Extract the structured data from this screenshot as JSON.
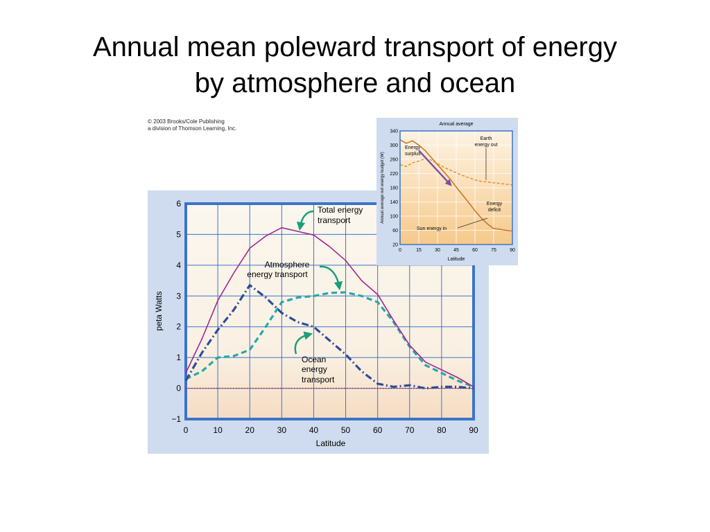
{
  "slide": {
    "title_line1": "Annual mean poleward transport of energy",
    "title_line2": "by atmosphere and ocean"
  },
  "copyright": {
    "line1": "© 2003 Brooks/Cole Publishing",
    "line2": "a division of Thomson Learning, Inc."
  },
  "colors": {
    "main_panel_bg": "#cfdcef",
    "plot_bg_top": "#fbf7ee",
    "plot_bg_bottom": "#f5dcc2",
    "grid": "#3b73c9",
    "total": "#a3258f",
    "atmosphere": "#26a8a8",
    "ocean": "#2b4d9a",
    "zero_line": "#c8102e",
    "annotation_arrow": "#17a07a",
    "inset_bg_top": "#fdf3e3",
    "inset_bg_bottom": "#f6c98a",
    "inset_sun": "#c9762a",
    "inset_earth": "#e08a2c",
    "inset_arrow": "#7a4fa3"
  },
  "chart_data": [
    {
      "type": "line",
      "title": "",
      "xlabel": "Latitude",
      "ylabel": "peta Watts",
      "xlim": [
        0,
        90
      ],
      "ylim": [
        -1,
        6
      ],
      "x_ticks": [
        "0",
        "10",
        "20",
        "30",
        "40",
        "50",
        "60",
        "70",
        "80",
        "90"
      ],
      "y_ticks": [
        "−1",
        "0",
        "1",
        "2",
        "3",
        "4",
        "5",
        "6"
      ],
      "grid": true,
      "legend": "none",
      "annotations": [
        {
          "text_line1": "Total energy",
          "text_line2": "transport",
          "series": "total"
        },
        {
          "text_line1": "Atmosphere",
          "text_line2": "energy transport",
          "series": "atmosphere"
        },
        {
          "text_line1": "Ocean",
          "text_line2": "energy",
          "text_line3": "transport",
          "series": "ocean"
        }
      ],
      "series": [
        {
          "key": "total",
          "style": "solid",
          "x": [
            0,
            5,
            10,
            15,
            20,
            25,
            30,
            35,
            40,
            45,
            50,
            55,
            60,
            65,
            70,
            75,
            80,
            85,
            90
          ],
          "values": [
            0.5,
            1.6,
            2.85,
            3.75,
            4.55,
            4.95,
            5.22,
            5.1,
            4.98,
            4.6,
            4.15,
            3.5,
            3.05,
            2.2,
            1.4,
            0.85,
            0.6,
            0.35,
            0.05
          ]
        },
        {
          "key": "atmosphere",
          "style": "dashed",
          "x": [
            0,
            5,
            10,
            15,
            20,
            25,
            30,
            35,
            40,
            45,
            50,
            55,
            60,
            65,
            70,
            75,
            80,
            85,
            90
          ],
          "values": [
            0.3,
            0.55,
            1.0,
            1.05,
            1.25,
            2.0,
            2.8,
            2.95,
            3.0,
            3.1,
            3.12,
            3.0,
            2.8,
            2.15,
            1.35,
            0.75,
            0.5,
            0.25,
            0.05
          ]
        },
        {
          "key": "ocean",
          "style": "dash-dot",
          "x": [
            0,
            5,
            10,
            15,
            20,
            25,
            30,
            35,
            40,
            45,
            50,
            55,
            60,
            65,
            70,
            75,
            80,
            85,
            90
          ],
          "values": [
            0.25,
            1.15,
            1.9,
            2.55,
            3.35,
            2.95,
            2.45,
            2.15,
            2.0,
            1.55,
            1.1,
            0.55,
            0.15,
            0.05,
            0.1,
            0.0,
            0.05,
            0.05,
            0.0
          ]
        },
        {
          "key": "zero",
          "style": "dotted",
          "x": [
            0,
            90
          ],
          "values": [
            0,
            0
          ]
        }
      ]
    },
    {
      "type": "area",
      "title": "Annual average",
      "xlabel": "Latitude",
      "ylabel": "Annual average net energy budget (W)",
      "xlim": [
        0,
        90
      ],
      "ylim": [
        20,
        340
      ],
      "x_ticks": [
        "0",
        "15",
        "30",
        "45",
        "60",
        "75",
        "90"
      ],
      "y_ticks": [
        "340",
        "300",
        "260",
        "220",
        "180",
        "140",
        "100",
        "60",
        "20"
      ],
      "grid": true,
      "labels": {
        "earth_line1": "Earth",
        "earth_line2": "energy out",
        "surplus_line1": "Energy",
        "surplus_line2": "surplus",
        "deficit_line1": "Energy",
        "deficit_line2": "deficit",
        "sun": "Sun energy in"
      },
      "series": [
        {
          "key": "sun",
          "style": "solid",
          "x": [
            0,
            5,
            10,
            15,
            20,
            25,
            30,
            35,
            40,
            45,
            50,
            55,
            60,
            65,
            70,
            75,
            80,
            85,
            90
          ],
          "values": [
            315,
            305,
            312,
            300,
            285,
            265,
            245,
            225,
            205,
            182,
            160,
            138,
            115,
            95,
            78,
            65,
            63,
            60,
            58
          ]
        },
        {
          "key": "earth",
          "style": "dashed",
          "x": [
            0,
            5,
            10,
            15,
            20,
            25,
            30,
            35,
            40,
            45,
            50,
            55,
            60,
            65,
            70,
            75,
            80,
            85,
            90
          ],
          "values": [
            245,
            240,
            250,
            255,
            262,
            258,
            248,
            238,
            230,
            222,
            215,
            208,
            202,
            198,
            196,
            194,
            192,
            190,
            188
          ]
        },
        {
          "key": "transport_arrow",
          "style": "arrow",
          "x": [
            15,
            40
          ],
          "values": [
            285,
            190
          ]
        }
      ]
    }
  ]
}
